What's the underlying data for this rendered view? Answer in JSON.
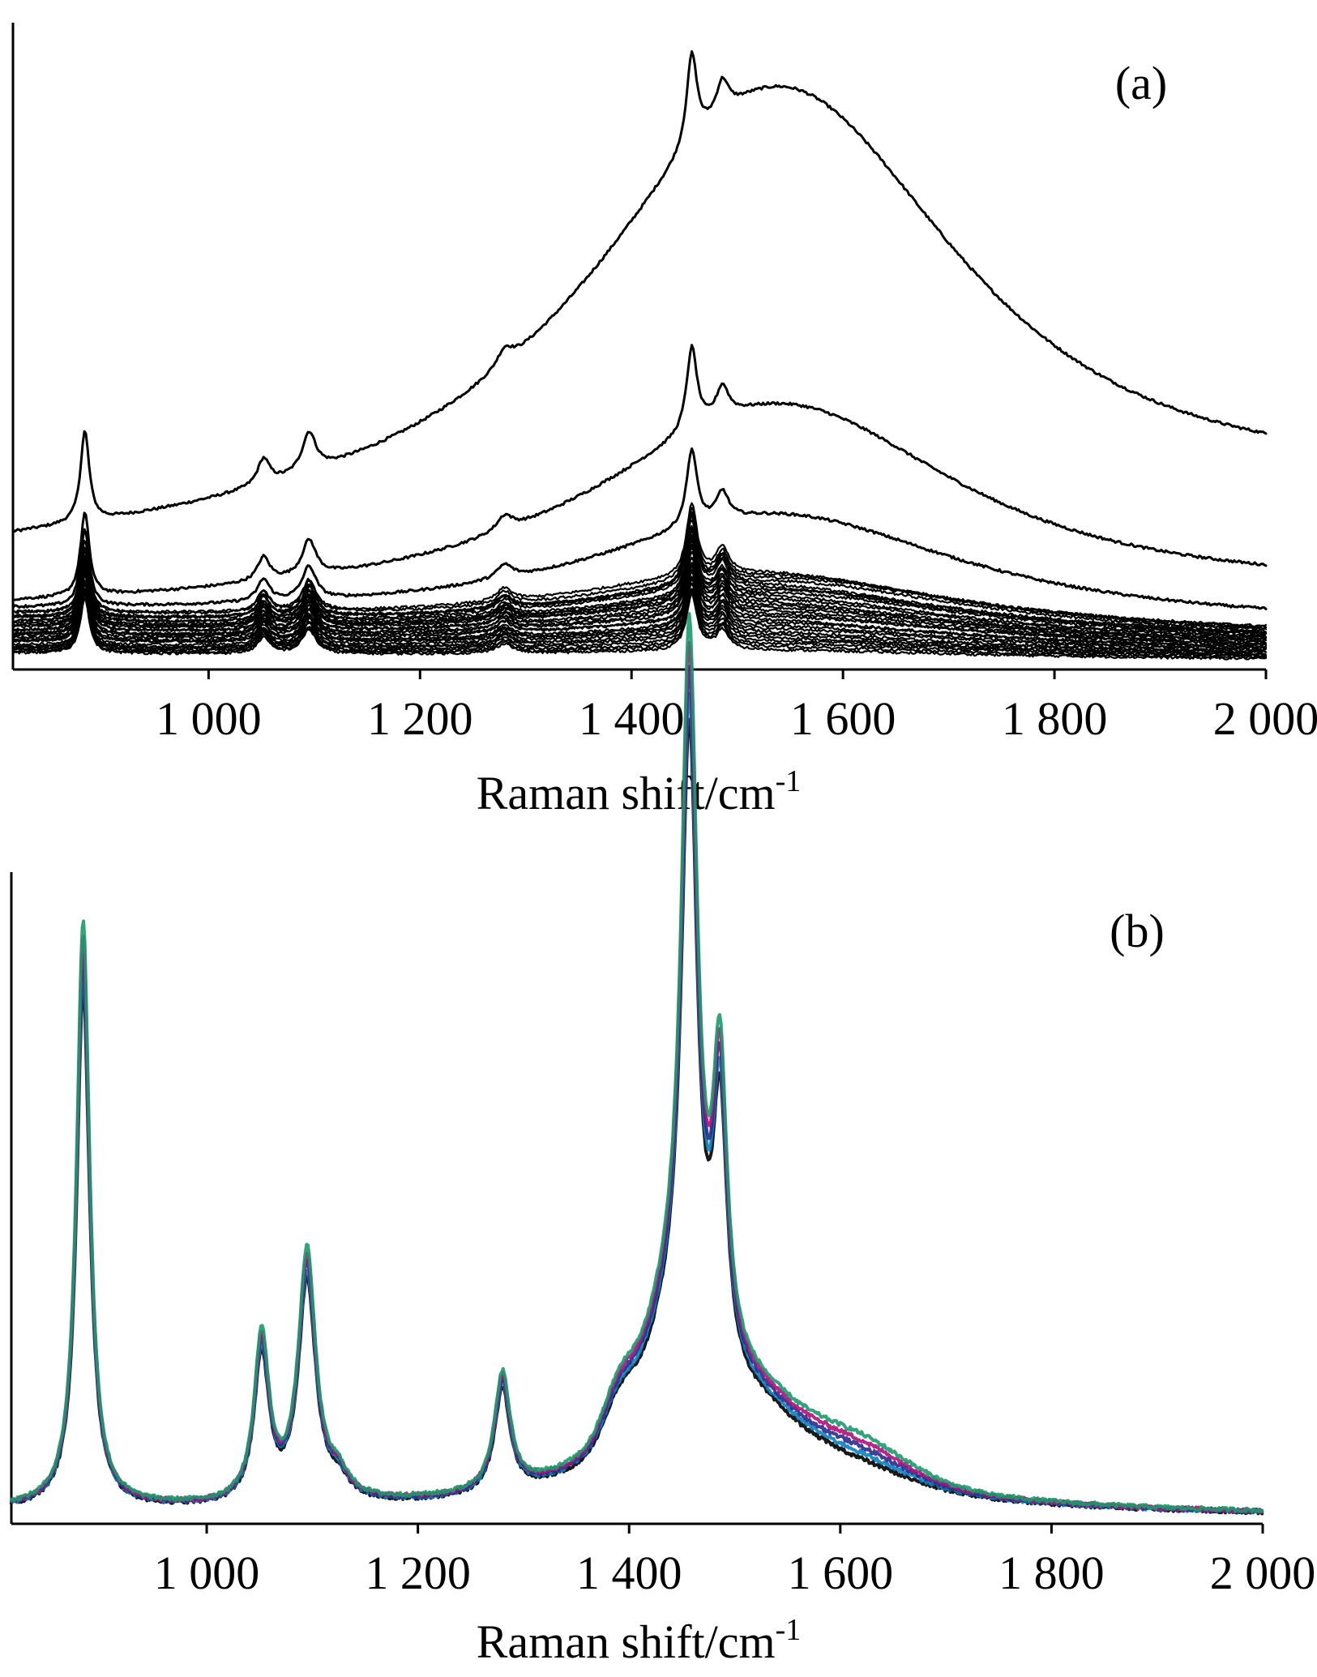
{
  "chart_data": [
    {
      "panel": "(a)",
      "type": "line",
      "xlabel": "Raman shift/cm",
      "xlabel_sup": "-1",
      "xlim": [
        815,
        2000
      ],
      "ylim": [
        0,
        1
      ],
      "y_axis_ticks": "none",
      "x_ticks": [
        1000,
        1200,
        1400,
        1600,
        1800,
        2000
      ],
      "x_tick_labels": [
        "1 000",
        "1 200",
        "1 400",
        "1 600",
        "1 800",
        "2 000"
      ],
      "line_color": "#000000",
      "bands_cm1": [
        883,
        1052,
        1095,
        1280,
        1457,
        1486
      ],
      "spectra_count": 30,
      "series": [
        {
          "baseline_start": 0.17,
          "broad_peak_height": 0.9,
          "broad_peak_center": 1540,
          "broad_peak_width": 235,
          "peak_scale": 1.0,
          "baseline_end": 0.27
        },
        {
          "baseline_start": 0.09,
          "broad_peak_height": 0.41,
          "broad_peak_center": 1540,
          "broad_peak_width": 230,
          "peak_scale": 0.92,
          "baseline_end": 0.12
        },
        {
          "baseline_start": 0.088,
          "broad_peak_height": 0.24,
          "broad_peak_center": 1535,
          "broad_peak_width": 230,
          "peak_scale": 0.85,
          "baseline_end": 0.07
        }
      ]
    },
    {
      "panel": "(b)",
      "type": "line",
      "xlabel": "Raman shift/cm",
      "xlabel_sup": "-1",
      "xlim": [
        815,
        2000
      ],
      "ylim": [
        0,
        1
      ],
      "y_axis_ticks": "none",
      "x_ticks": [
        1000,
        1200,
        1400,
        1600,
        1800,
        2000
      ],
      "x_tick_labels": [
        "1 000",
        "1 200",
        "1 400",
        "1 600",
        "1 800",
        "2 000"
      ],
      "bands_cm1": [
        883,
        1052,
        1095,
        1280,
        1390,
        1457,
        1486,
        1620
      ],
      "relative_peak_heights": {
        "883": 0.85,
        "1052": 0.24,
        "1095": 0.36,
        "1280": 0.17,
        "1457": 1.0,
        "1486": 0.42
      },
      "series_colors": [
        "#000000",
        "#0b7fbf",
        "#2a2a8c",
        "#b0107a",
        "#1c9a6a"
      ]
    }
  ]
}
